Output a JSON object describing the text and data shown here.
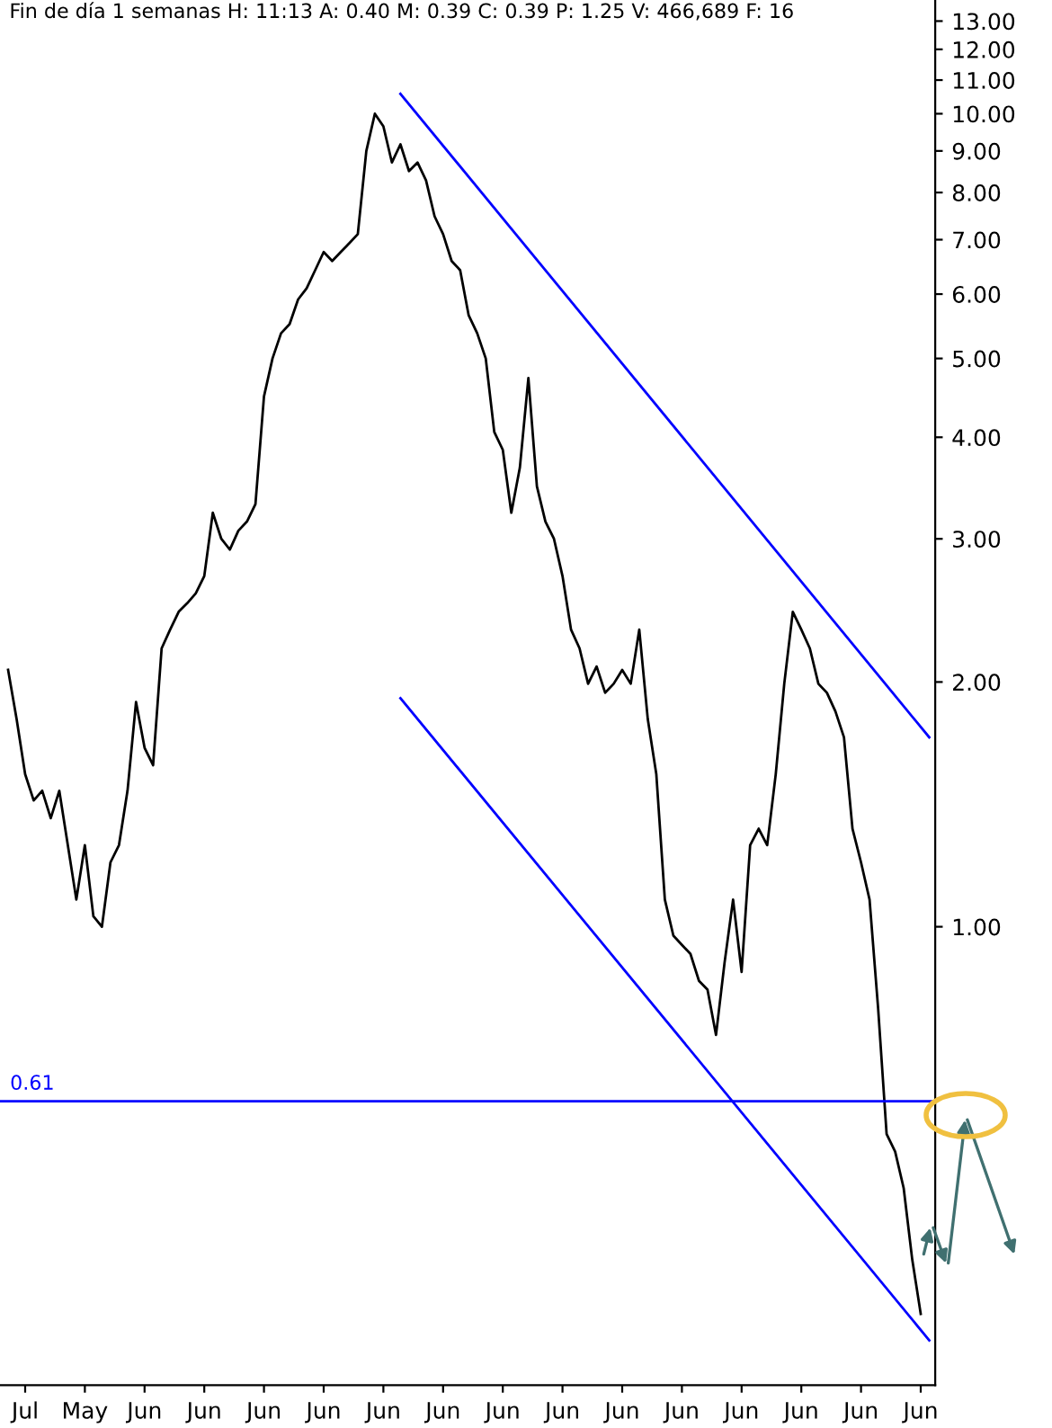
{
  "chart_data": {
    "type": "line",
    "title": "Fin de día 1 semanas H: 11:13 A: 0.40 M: 0.39 C: 0.39 P: 1.25 V: 466,689 F: 16",
    "log": "y",
    "legend": false,
    "grid": false,
    "marker": "none",
    "line_style": "solid",
    "categories": [
      null,
      null,
      "Jul",
      null,
      null,
      null,
      null,
      null,
      null,
      "May",
      null,
      null,
      null,
      null,
      null,
      null,
      "Jun",
      null,
      null,
      null,
      null,
      null,
      null,
      "Jun",
      null,
      null,
      null,
      null,
      null,
      null,
      "Jun",
      null,
      null,
      null,
      null,
      null,
      null,
      "Jun",
      null,
      null,
      null,
      null,
      null,
      null,
      "Jun",
      null,
      null,
      null,
      null,
      null,
      null,
      "Jun",
      null,
      null,
      null,
      null,
      null,
      null,
      "Jun",
      null,
      null,
      null,
      null,
      null,
      null,
      "Jun",
      null,
      null,
      null,
      null,
      null,
      null,
      "Jun",
      null,
      null,
      null,
      null,
      null,
      null,
      "Jun",
      null,
      null,
      null,
      null,
      null,
      null,
      "Jun",
      null,
      null,
      null,
      null,
      null,
      null,
      "Jun",
      null,
      null,
      null,
      null,
      null,
      null,
      "Jun",
      null,
      null,
      null,
      null,
      null,
      null,
      "Jun",
      null
    ],
    "ylim": [
      0.273,
      13.8
    ],
    "yticks": [
      {
        "value": 1,
        "label": "1.00"
      },
      {
        "value": 2,
        "label": "2.00"
      },
      {
        "value": 3,
        "label": "3.00"
      },
      {
        "value": 4,
        "label": "4.00"
      },
      {
        "value": 5,
        "label": "5.00"
      },
      {
        "value": 6,
        "label": "6.00"
      },
      {
        "value": 7,
        "label": "7.00"
      },
      {
        "value": 8,
        "label": "8.00"
      },
      {
        "value": 9,
        "label": "9.00"
      },
      {
        "value": 10,
        "label": "10.00"
      },
      {
        "value": 11,
        "label": "11.00"
      },
      {
        "value": 12,
        "label": "12.00"
      },
      {
        "value": 13,
        "label": "13.00"
      }
    ],
    "ref_lines": [
      {
        "axis": "y",
        "value": 0.61,
        "label": "0.61",
        "color": "#0000ff"
      }
    ],
    "series": [
      {
        "color": "#000000",
        "values": [
          2.07,
          1.8,
          1.54,
          1.43,
          1.47,
          1.36,
          1.47,
          1.26,
          1.08,
          1.26,
          1.03,
          1.0,
          1.2,
          1.26,
          1.47,
          1.89,
          1.66,
          1.58,
          2.2,
          2.32,
          2.44,
          2.5,
          2.57,
          2.7,
          3.23,
          3.0,
          2.91,
          3.07,
          3.15,
          3.31,
          4.49,
          5.0,
          5.37,
          5.51,
          5.91,
          6.1,
          6.42,
          6.76,
          6.59,
          6.76,
          6.93,
          7.11,
          9.0,
          10.0,
          9.65,
          8.71,
          9.17,
          8.5,
          8.71,
          8.28,
          7.48,
          7.11,
          6.59,
          6.42,
          5.65,
          5.37,
          5.0,
          4.06,
          3.86,
          3.23,
          3.67,
          4.73,
          3.48,
          3.15,
          3.0,
          2.7,
          2.32,
          2.2,
          1.99,
          2.09,
          1.94,
          1.99,
          2.07,
          1.99,
          2.32,
          1.8,
          1.54,
          1.08,
          0.975,
          0.95,
          0.926,
          0.858,
          0.837,
          0.736,
          0.903,
          1.08,
          0.88,
          1.26,
          1.32,
          1.26,
          1.54,
          1.99,
          2.44,
          2.32,
          2.2,
          1.99,
          1.94,
          1.84,
          1.71,
          1.32,
          1.2,
          1.08,
          0.795,
          0.556,
          0.529,
          0.477,
          0.39,
          0.334,
          null
        ]
      },
      {
        "color": "#0000ff",
        "values": [
          null,
          null,
          null,
          null,
          null,
          null,
          null,
          null,
          null,
          null,
          null,
          null,
          null,
          null,
          null,
          null,
          null,
          null,
          null,
          null,
          null,
          null,
          null,
          null,
          null,
          null,
          null,
          null,
          null,
          null,
          null,
          null,
          null,
          null,
          null,
          null,
          null,
          null,
          null,
          null,
          null,
          null,
          null,
          null,
          null,
          null,
          10.58,
          null,
          null,
          null,
          null,
          null,
          null,
          null,
          null,
          null,
          null,
          null,
          null,
          null,
          null,
          null,
          null,
          null,
          null,
          null,
          null,
          null,
          null,
          null,
          null,
          null,
          null,
          null,
          null,
          null,
          null,
          null,
          null,
          null,
          null,
          null,
          null,
          null,
          null,
          null,
          null,
          null,
          null,
          null,
          null,
          null,
          null,
          null,
          null,
          null,
          null,
          null,
          null,
          null,
          null,
          null,
          null,
          null,
          null,
          null,
          null,
          null,
          1.71
        ]
      },
      {
        "color": "#0000ff",
        "values": [
          null,
          null,
          null,
          null,
          null,
          null,
          null,
          null,
          null,
          null,
          null,
          null,
          null,
          null,
          null,
          null,
          null,
          null,
          null,
          null,
          null,
          null,
          null,
          null,
          null,
          null,
          null,
          null,
          null,
          null,
          null,
          null,
          null,
          null,
          null,
          null,
          null,
          null,
          null,
          null,
          null,
          null,
          null,
          null,
          null,
          null,
          1.91,
          null,
          null,
          null,
          null,
          null,
          null,
          null,
          null,
          null,
          null,
          null,
          null,
          null,
          null,
          null,
          null,
          null,
          null,
          null,
          null,
          null,
          null,
          null,
          null,
          null,
          null,
          null,
          null,
          null,
          null,
          null,
          null,
          null,
          null,
          null,
          null,
          null,
          null,
          null,
          null,
          null,
          null,
          null,
          null,
          null,
          null,
          null,
          null,
          null,
          null,
          null,
          null,
          null,
          null,
          null,
          null,
          null,
          null,
          null,
          null,
          null,
          0.31
        ]
      }
    ]
  }
}
